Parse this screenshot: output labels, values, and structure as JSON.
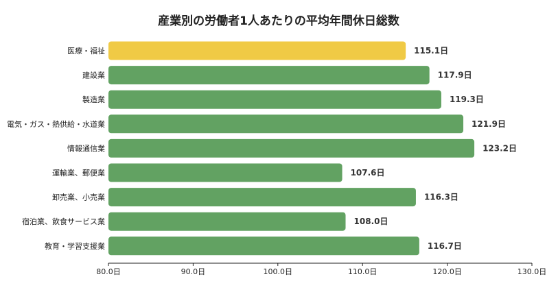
{
  "chart_data": {
    "type": "bar",
    "orientation": "horizontal",
    "title": "産業別の労働者1人あたりの平均年間休日総数",
    "xlabel": "",
    "ylabel": "",
    "categories": [
      "医療・福祉",
      "建設業",
      "製造業",
      "電気・ガス・熱供給・水道業",
      "情報通信業",
      "運輸業、郵便業",
      "卸売業、小売業",
      "宿泊業、飲食サービス業",
      "教育・学習支援業"
    ],
    "values": [
      115.1,
      117.9,
      119.3,
      121.9,
      123.2,
      107.6,
      116.3,
      108.0,
      116.7
    ],
    "value_labels": [
      "115.1日",
      "117.9日",
      "119.3日",
      "121.9日",
      "123.2日",
      "107.6日",
      "116.3日",
      "108.0日",
      "116.7日"
    ],
    "xlim": [
      80,
      130
    ],
    "x_ticks": [
      80,
      90,
      100,
      110,
      120,
      130
    ],
    "x_tick_labels": [
      "80.0日",
      "90.0日",
      "100.0日",
      "110.0日",
      "120.0日",
      "130.0日"
    ],
    "highlight_index": 0,
    "colors": {
      "bar": "#62a262",
      "highlight": "#f0ca45",
      "axis": "#222222"
    },
    "grid": false,
    "legend": "none"
  }
}
